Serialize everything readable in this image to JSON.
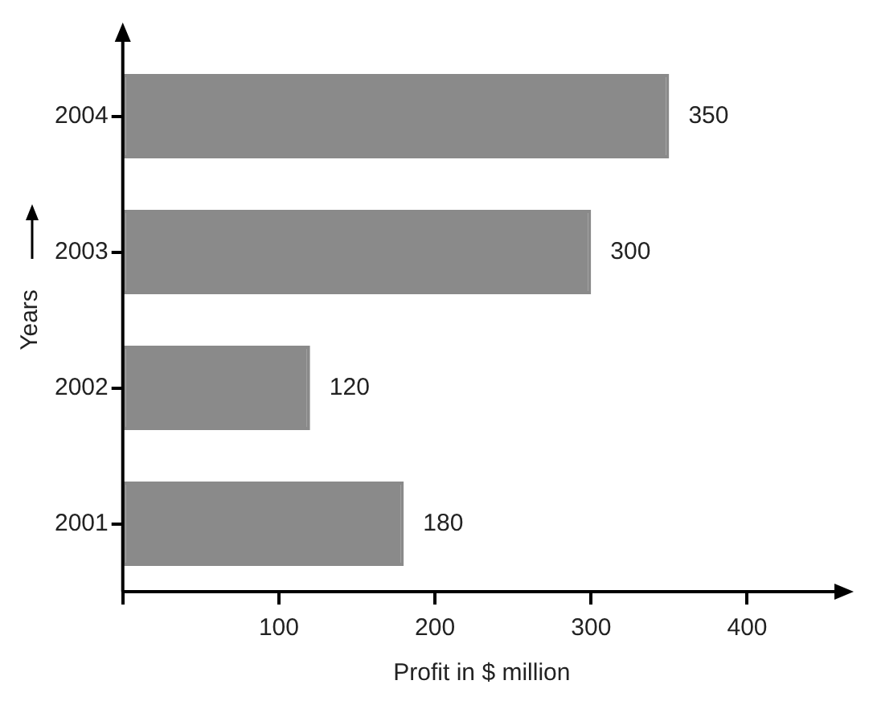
{
  "chart_data": {
    "type": "bar",
    "orientation": "horizontal",
    "xlabel": "Profit in $ million",
    "ylabel": "Years",
    "categories": [
      "2004",
      "2003",
      "2002",
      "2001"
    ],
    "values": [
      350,
      300,
      120,
      180
    ],
    "color": "#8a8a8a",
    "xlim": [
      0,
      460
    ],
    "xticks": [
      {
        "value": 0,
        "label": null
      },
      100,
      200,
      300,
      400
    ],
    "data_labels": true,
    "legend": false
  }
}
